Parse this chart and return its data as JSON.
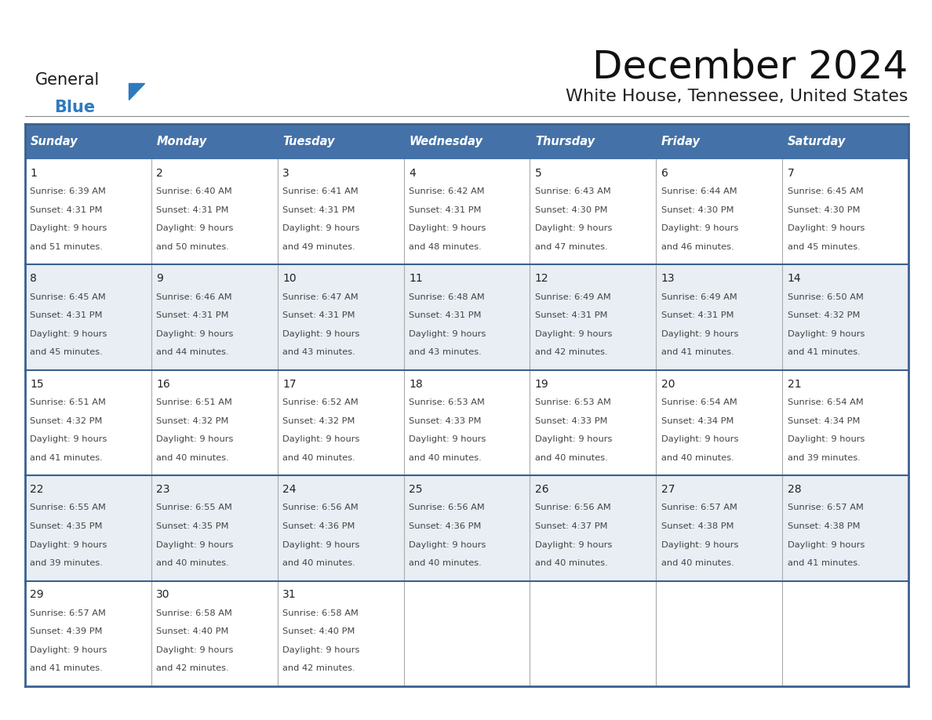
{
  "title": "December 2024",
  "subtitle": "White House, Tennessee, United States",
  "days_of_week": [
    "Sunday",
    "Monday",
    "Tuesday",
    "Wednesday",
    "Thursday",
    "Friday",
    "Saturday"
  ],
  "header_bg": "#4472a8",
  "header_text_color": "#FFFFFF",
  "row_bg_light": "#FFFFFF",
  "row_bg_dark": "#e8eef4",
  "day_num_color": "#222222",
  "cell_text_color": "#444444",
  "border_color": "#3a6090",
  "row_sep_color": "#3a6090",
  "col_sep_color": "#aaaaaa",
  "calendar_data": [
    {
      "day": 1,
      "col": 0,
      "row": 0,
      "sunrise": "6:39 AM",
      "sunset": "4:31 PM",
      "dl_mins": "51 minutes."
    },
    {
      "day": 2,
      "col": 1,
      "row": 0,
      "sunrise": "6:40 AM",
      "sunset": "4:31 PM",
      "dl_mins": "50 minutes."
    },
    {
      "day": 3,
      "col": 2,
      "row": 0,
      "sunrise": "6:41 AM",
      "sunset": "4:31 PM",
      "dl_mins": "49 minutes."
    },
    {
      "day": 4,
      "col": 3,
      "row": 0,
      "sunrise": "6:42 AM",
      "sunset": "4:31 PM",
      "dl_mins": "48 minutes."
    },
    {
      "day": 5,
      "col": 4,
      "row": 0,
      "sunrise": "6:43 AM",
      "sunset": "4:30 PM",
      "dl_mins": "47 minutes."
    },
    {
      "day": 6,
      "col": 5,
      "row": 0,
      "sunrise": "6:44 AM",
      "sunset": "4:30 PM",
      "dl_mins": "46 minutes."
    },
    {
      "day": 7,
      "col": 6,
      "row": 0,
      "sunrise": "6:45 AM",
      "sunset": "4:30 PM",
      "dl_mins": "45 minutes."
    },
    {
      "day": 8,
      "col": 0,
      "row": 1,
      "sunrise": "6:45 AM",
      "sunset": "4:31 PM",
      "dl_mins": "45 minutes."
    },
    {
      "day": 9,
      "col": 1,
      "row": 1,
      "sunrise": "6:46 AM",
      "sunset": "4:31 PM",
      "dl_mins": "44 minutes."
    },
    {
      "day": 10,
      "col": 2,
      "row": 1,
      "sunrise": "6:47 AM",
      "sunset": "4:31 PM",
      "dl_mins": "43 minutes."
    },
    {
      "day": 11,
      "col": 3,
      "row": 1,
      "sunrise": "6:48 AM",
      "sunset": "4:31 PM",
      "dl_mins": "43 minutes."
    },
    {
      "day": 12,
      "col": 4,
      "row": 1,
      "sunrise": "6:49 AM",
      "sunset": "4:31 PM",
      "dl_mins": "42 minutes."
    },
    {
      "day": 13,
      "col": 5,
      "row": 1,
      "sunrise": "6:49 AM",
      "sunset": "4:31 PM",
      "dl_mins": "41 minutes."
    },
    {
      "day": 14,
      "col": 6,
      "row": 1,
      "sunrise": "6:50 AM",
      "sunset": "4:32 PM",
      "dl_mins": "41 minutes."
    },
    {
      "day": 15,
      "col": 0,
      "row": 2,
      "sunrise": "6:51 AM",
      "sunset": "4:32 PM",
      "dl_mins": "41 minutes."
    },
    {
      "day": 16,
      "col": 1,
      "row": 2,
      "sunrise": "6:51 AM",
      "sunset": "4:32 PM",
      "dl_mins": "40 minutes."
    },
    {
      "day": 17,
      "col": 2,
      "row": 2,
      "sunrise": "6:52 AM",
      "sunset": "4:32 PM",
      "dl_mins": "40 minutes."
    },
    {
      "day": 18,
      "col": 3,
      "row": 2,
      "sunrise": "6:53 AM",
      "sunset": "4:33 PM",
      "dl_mins": "40 minutes."
    },
    {
      "day": 19,
      "col": 4,
      "row": 2,
      "sunrise": "6:53 AM",
      "sunset": "4:33 PM",
      "dl_mins": "40 minutes."
    },
    {
      "day": 20,
      "col": 5,
      "row": 2,
      "sunrise": "6:54 AM",
      "sunset": "4:34 PM",
      "dl_mins": "40 minutes."
    },
    {
      "day": 21,
      "col": 6,
      "row": 2,
      "sunrise": "6:54 AM",
      "sunset": "4:34 PM",
      "dl_mins": "39 minutes."
    },
    {
      "day": 22,
      "col": 0,
      "row": 3,
      "sunrise": "6:55 AM",
      "sunset": "4:35 PM",
      "dl_mins": "39 minutes."
    },
    {
      "day": 23,
      "col": 1,
      "row": 3,
      "sunrise": "6:55 AM",
      "sunset": "4:35 PM",
      "dl_mins": "40 minutes."
    },
    {
      "day": 24,
      "col": 2,
      "row": 3,
      "sunrise": "6:56 AM",
      "sunset": "4:36 PM",
      "dl_mins": "40 minutes."
    },
    {
      "day": 25,
      "col": 3,
      "row": 3,
      "sunrise": "6:56 AM",
      "sunset": "4:36 PM",
      "dl_mins": "40 minutes."
    },
    {
      "day": 26,
      "col": 4,
      "row": 3,
      "sunrise": "6:56 AM",
      "sunset": "4:37 PM",
      "dl_mins": "40 minutes."
    },
    {
      "day": 27,
      "col": 5,
      "row": 3,
      "sunrise": "6:57 AM",
      "sunset": "4:38 PM",
      "dl_mins": "40 minutes."
    },
    {
      "day": 28,
      "col": 6,
      "row": 3,
      "sunrise": "6:57 AM",
      "sunset": "4:38 PM",
      "dl_mins": "41 minutes."
    },
    {
      "day": 29,
      "col": 0,
      "row": 4,
      "sunrise": "6:57 AM",
      "sunset": "4:39 PM",
      "dl_mins": "41 minutes."
    },
    {
      "day": 30,
      "col": 1,
      "row": 4,
      "sunrise": "6:58 AM",
      "sunset": "4:40 PM",
      "dl_mins": "42 minutes."
    },
    {
      "day": 31,
      "col": 2,
      "row": 4,
      "sunrise": "6:58 AM",
      "sunset": "4:40 PM",
      "dl_mins": "42 minutes."
    }
  ]
}
